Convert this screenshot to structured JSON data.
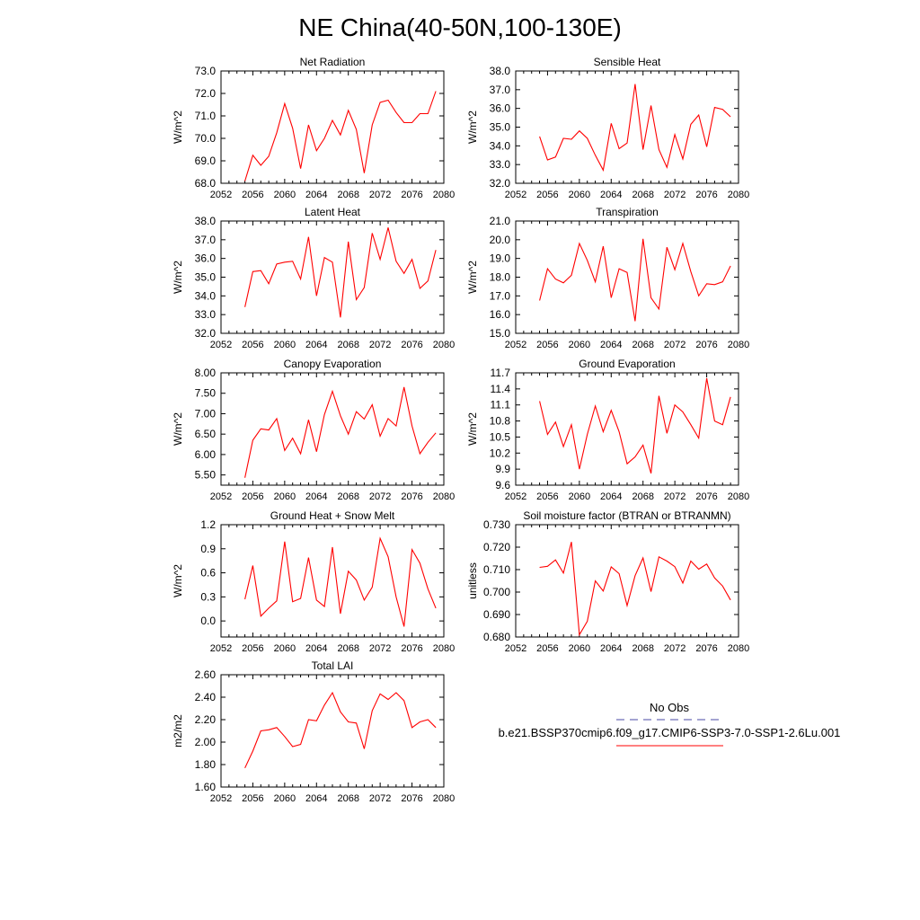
{
  "figure": {
    "title": "NE China(40-50N,100-130E)"
  },
  "legend": {
    "obs_label": "No Obs",
    "model_label": "b.e21.BSSP370cmip6.f09_g17.CMIP6-SSP3-7.0-SSP1-2.6Lu.001",
    "obs_color": "#4a4aa6",
    "model_color": "#ff0000"
  },
  "chart_data": [
    {
      "type": "line",
      "title": "Net Radiation",
      "ylabel": "W/m^2",
      "xlim": [
        2052,
        2080
      ],
      "ylim": [
        68.0,
        73.0
      ],
      "xticks": [
        "2052",
        "2056",
        "2060",
        "2064",
        "2068",
        "2072",
        "2076",
        "2080"
      ],
      "yticks": [
        "68.0",
        "69.0",
        "70.0",
        "71.0",
        "72.0",
        "73.0"
      ],
      "grid": false,
      "series": [
        {
          "x": [
            2055,
            2056,
            2057,
            2058,
            2059,
            2060,
            2061,
            2062,
            2063,
            2064,
            2065,
            2066,
            2067,
            2068,
            2069,
            2070,
            2071,
            2072,
            2073,
            2074,
            2075,
            2076,
            2077,
            2078,
            2079
          ],
          "values": [
            68.1,
            69.25,
            68.8,
            69.2,
            70.25,
            71.55,
            70.45,
            68.65,
            70.6,
            69.45,
            70.0,
            70.8,
            70.15,
            71.25,
            70.4,
            68.45,
            70.6,
            71.6,
            71.7,
            71.15,
            70.7,
            70.7,
            71.1,
            71.1,
            72.1
          ]
        }
      ]
    },
    {
      "type": "line",
      "title": "Sensible Heat",
      "ylabel": "W/m^2",
      "xlim": [
        2052,
        2080
      ],
      "ylim": [
        32.0,
        38.0
      ],
      "xticks": [
        "2052",
        "2056",
        "2060",
        "2064",
        "2068",
        "2072",
        "2076",
        "2080"
      ],
      "yticks": [
        "32.0",
        "33.0",
        "34.0",
        "35.0",
        "36.0",
        "37.0",
        "38.0"
      ],
      "grid": false,
      "series": [
        {
          "x": [
            2055,
            2056,
            2057,
            2058,
            2059,
            2060,
            2061,
            2062,
            2063,
            2064,
            2065,
            2066,
            2067,
            2068,
            2069,
            2070,
            2071,
            2072,
            2073,
            2074,
            2075,
            2076,
            2077,
            2078,
            2079
          ],
          "values": [
            34.5,
            33.25,
            33.4,
            34.4,
            34.35,
            34.8,
            34.4,
            33.5,
            32.7,
            35.2,
            33.85,
            34.15,
            37.3,
            33.8,
            36.15,
            33.8,
            32.85,
            34.6,
            33.3,
            35.15,
            35.65,
            33.95,
            36.05,
            35.95,
            35.55
          ]
        }
      ]
    },
    {
      "type": "line",
      "title": "Latent Heat",
      "ylabel": "W/m^2",
      "xlim": [
        2052,
        2080
      ],
      "ylim": [
        32.0,
        38.0
      ],
      "xticks": [
        "2052",
        "2056",
        "2060",
        "2064",
        "2068",
        "2072",
        "2076",
        "2080"
      ],
      "yticks": [
        "32.0",
        "33.0",
        "34.0",
        "35.0",
        "36.0",
        "37.0",
        "38.0"
      ],
      "grid": false,
      "series": [
        {
          "x": [
            2055,
            2056,
            2057,
            2058,
            2059,
            2060,
            2061,
            2062,
            2063,
            2064,
            2065,
            2066,
            2067,
            2068,
            2069,
            2070,
            2071,
            2072,
            2073,
            2074,
            2075,
            2076,
            2077,
            2078,
            2079
          ],
          "values": [
            33.4,
            35.3,
            35.35,
            34.65,
            35.7,
            35.8,
            35.85,
            34.9,
            37.15,
            34.0,
            36.05,
            35.8,
            32.85,
            36.9,
            33.8,
            34.45,
            37.35,
            35.95,
            37.65,
            35.85,
            35.2,
            35.95,
            34.4,
            34.8,
            36.45
          ]
        }
      ]
    },
    {
      "type": "line",
      "title": "Transpiration",
      "ylabel": "W/m^2",
      "xlim": [
        2052,
        2080
      ],
      "ylim": [
        15.0,
        21.0
      ],
      "xticks": [
        "2052",
        "2056",
        "2060",
        "2064",
        "2068",
        "2072",
        "2076",
        "2080"
      ],
      "yticks": [
        "15.0",
        "16.0",
        "17.0",
        "18.0",
        "19.0",
        "20.0",
        "21.0"
      ],
      "grid": false,
      "series": [
        {
          "x": [
            2055,
            2056,
            2057,
            2058,
            2059,
            2060,
            2061,
            2062,
            2063,
            2064,
            2065,
            2066,
            2067,
            2068,
            2069,
            2070,
            2071,
            2072,
            2073,
            2074,
            2075,
            2076,
            2077,
            2078,
            2079
          ],
          "values": [
            16.75,
            18.45,
            17.9,
            17.7,
            18.1,
            19.8,
            18.9,
            17.75,
            19.65,
            16.9,
            18.45,
            18.25,
            15.65,
            20.05,
            16.9,
            16.3,
            19.6,
            18.4,
            19.8,
            18.3,
            17.0,
            17.65,
            17.6,
            17.75,
            18.6
          ]
        }
      ]
    },
    {
      "type": "line",
      "title": "Canopy Evaporation",
      "ylabel": "W/m^2",
      "xlim": [
        2052,
        2080
      ],
      "ylim": [
        5.25,
        8.0
      ],
      "xticks": [
        "2052",
        "2056",
        "2060",
        "2064",
        "2068",
        "2072",
        "2076",
        "2080"
      ],
      "yticks": [
        "5.50",
        "6.00",
        "6.50",
        "7.00",
        "7.50",
        "8.00"
      ],
      "grid": false,
      "series": [
        {
          "x": [
            2055,
            2056,
            2057,
            2058,
            2059,
            2060,
            2061,
            2062,
            2063,
            2064,
            2065,
            2066,
            2067,
            2068,
            2069,
            2070,
            2071,
            2072,
            2073,
            2074,
            2075,
            2076,
            2077,
            2078,
            2079
          ],
          "values": [
            5.43,
            6.35,
            6.63,
            6.6,
            6.88,
            6.1,
            6.4,
            6.02,
            6.85,
            6.07,
            6.98,
            7.55,
            6.95,
            6.5,
            7.05,
            6.87,
            7.22,
            6.45,
            6.88,
            6.7,
            7.65,
            6.7,
            6.02,
            6.3,
            6.53
          ]
        }
      ]
    },
    {
      "type": "line",
      "title": "Ground Evaporation",
      "ylabel": "W/m^2",
      "xlim": [
        2052,
        2080
      ],
      "ylim": [
        9.6,
        11.7
      ],
      "xticks": [
        "2052",
        "2056",
        "2060",
        "2064",
        "2068",
        "2072",
        "2076",
        "2080"
      ],
      "yticks": [
        "9.6",
        "9.9",
        "10.2",
        "10.5",
        "10.8",
        "11.1",
        "11.4",
        "11.7"
      ],
      "grid": false,
      "series": [
        {
          "x": [
            2055,
            2056,
            2057,
            2058,
            2059,
            2060,
            2061,
            2062,
            2063,
            2064,
            2065,
            2066,
            2067,
            2068,
            2069,
            2070,
            2071,
            2072,
            2073,
            2074,
            2075,
            2076,
            2077,
            2078,
            2079
          ],
          "values": [
            11.17,
            10.55,
            10.78,
            10.32,
            10.73,
            9.9,
            10.55,
            11.08,
            10.6,
            11.0,
            10.6,
            10.0,
            10.13,
            10.35,
            9.82,
            11.27,
            10.57,
            11.1,
            10.97,
            10.73,
            10.48,
            11.6,
            10.8,
            10.73,
            11.25
          ]
        }
      ]
    },
    {
      "type": "line",
      "title": "Ground Heat + Snow Melt",
      "ylabel": "W/m^2",
      "xlim": [
        2052,
        2080
      ],
      "ylim": [
        -0.2,
        1.2
      ],
      "xticks": [
        "2052",
        "2056",
        "2060",
        "2064",
        "2068",
        "2072",
        "2076",
        "2080"
      ],
      "yticks": [
        "0.0",
        "0.3",
        "0.6",
        "0.9",
        "1.2"
      ],
      "grid": false,
      "series": [
        {
          "x": [
            2055,
            2056,
            2057,
            2058,
            2059,
            2060,
            2061,
            2062,
            2063,
            2064,
            2065,
            2066,
            2067,
            2068,
            2069,
            2070,
            2071,
            2072,
            2073,
            2074,
            2075,
            2076,
            2077,
            2078,
            2079
          ],
          "values": [
            0.27,
            0.69,
            0.06,
            0.16,
            0.25,
            0.99,
            0.24,
            0.28,
            0.79,
            0.26,
            0.18,
            0.92,
            0.09,
            0.62,
            0.51,
            0.26,
            0.42,
            1.03,
            0.8,
            0.3,
            -0.07,
            0.89,
            0.72,
            0.4,
            0.16
          ]
        }
      ]
    },
    {
      "type": "line",
      "title": "Soil moisture factor (BTRAN or BTRANMN)",
      "ylabel": "unitless",
      "xlim": [
        2052,
        2080
      ],
      "ylim": [
        0.68,
        0.73
      ],
      "xticks": [
        "2052",
        "2056",
        "2060",
        "2064",
        "2068",
        "2072",
        "2076",
        "2080"
      ],
      "yticks": [
        "0.680",
        "0.690",
        "0.700",
        "0.710",
        "0.720",
        "0.730"
      ],
      "grid": false,
      "series": [
        {
          "x": [
            2055,
            2056,
            2057,
            2058,
            2059,
            2060,
            2061,
            2062,
            2063,
            2064,
            2065,
            2066,
            2067,
            2068,
            2069,
            2070,
            2071,
            2072,
            2073,
            2074,
            2075,
            2076,
            2077,
            2078,
            2079
          ],
          "values": [
            0.711,
            0.7115,
            0.7143,
            0.7085,
            0.7223,
            0.681,
            0.687,
            0.705,
            0.7005,
            0.7112,
            0.7082,
            0.694,
            0.7073,
            0.7152,
            0.7002,
            0.7157,
            0.7138,
            0.7113,
            0.704,
            0.7138,
            0.7102,
            0.7125,
            0.7063,
            0.7027,
            0.6965
          ]
        }
      ]
    },
    {
      "type": "line",
      "title": "Total LAI",
      "ylabel": "m2/m2",
      "xlim": [
        2052,
        2080
      ],
      "ylim": [
        1.6,
        2.6
      ],
      "xticks": [
        "2052",
        "2056",
        "2060",
        "2064",
        "2068",
        "2072",
        "2076",
        "2080"
      ],
      "yticks": [
        "1.60",
        "1.80",
        "2.00",
        "2.20",
        "2.40",
        "2.60"
      ],
      "grid": false,
      "series": [
        {
          "x": [
            2055,
            2056,
            2057,
            2058,
            2059,
            2060,
            2061,
            2062,
            2063,
            2064,
            2065,
            2066,
            2067,
            2068,
            2069,
            2070,
            2071,
            2072,
            2073,
            2074,
            2075,
            2076,
            2077,
            2078,
            2079
          ],
          "values": [
            1.77,
            1.92,
            2.1,
            2.11,
            2.13,
            2.05,
            1.96,
            1.98,
            2.2,
            2.19,
            2.33,
            2.44,
            2.27,
            2.18,
            2.17,
            1.94,
            2.28,
            2.43,
            2.38,
            2.44,
            2.37,
            2.13,
            2.18,
            2.2,
            2.13
          ]
        }
      ]
    }
  ]
}
